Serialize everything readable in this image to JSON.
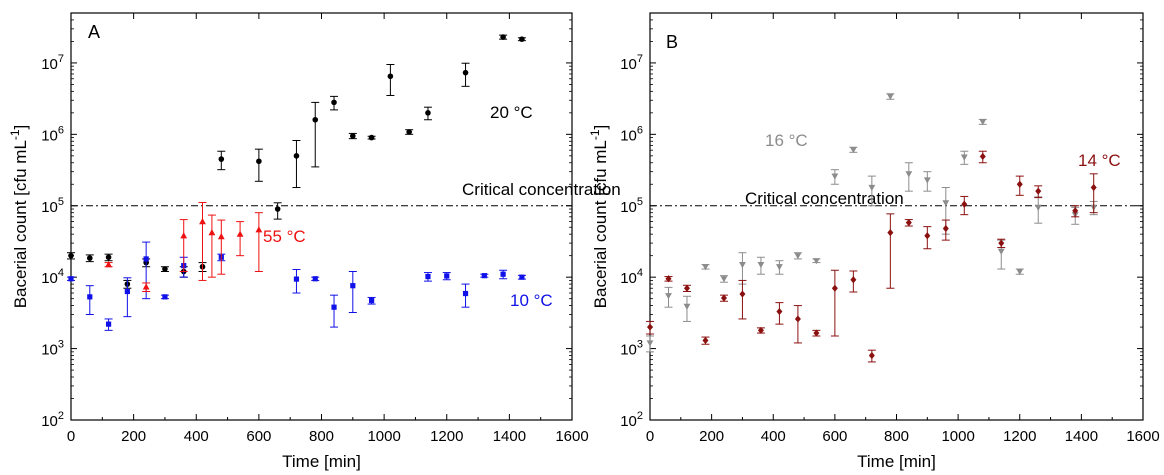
{
  "chart_data": [
    {
      "type": "scatter",
      "panel_label": "A",
      "xlabel": "Time [min]",
      "ylabel": "Bacerial count [cfu mL",
      "ylabel_sup": "-1",
      "ylabel_end": "]",
      "xlim": [
        0,
        1600
      ],
      "ylim": [
        100,
        50000000
      ],
      "yscale": "log",
      "x_ticks": [
        "0",
        "200",
        "400",
        "600",
        "800",
        "1000",
        "1200",
        "1400",
        "1600"
      ],
      "y_tick_labels": [
        {
          "base": "10",
          "exp": "2"
        },
        {
          "base": "10",
          "exp": "3"
        },
        {
          "base": "10",
          "exp": "4"
        },
        {
          "base": "10",
          "exp": "5"
        },
        {
          "base": "10",
          "exp": "6"
        },
        {
          "base": "10",
          "exp": "7"
        }
      ],
      "grid": false,
      "reference_line": {
        "y": 100000,
        "label": "Critical concentration"
      },
      "series": [
        {
          "name": "20 °C",
          "color": "#000000",
          "marker": "circle",
          "points": [
            {
              "x": 0,
              "y": 20000,
              "lo": 18000,
              "hi": 22000
            },
            {
              "x": 60,
              "y": 18500,
              "lo": 16500,
              "hi": 20500
            },
            {
              "x": 120,
              "y": 19000,
              "lo": 17000,
              "hi": 21000
            },
            {
              "x": 180,
              "y": 8000,
              "lo": 7000,
              "hi": 9000
            },
            {
              "x": 240,
              "y": 16000,
              "lo": 14000,
              "hi": 18000
            },
            {
              "x": 300,
              "y": 13000,
              "lo": 12000,
              "hi": 14000
            },
            {
              "x": 360,
              "y": 12000,
              "lo": 10000,
              "hi": 14000
            },
            {
              "x": 420,
              "y": 14000,
              "lo": 12000,
              "hi": 16000
            },
            {
              "x": 480,
              "y": 450000,
              "lo": 320000,
              "hi": 580000
            },
            {
              "x": 600,
              "y": 420000,
              "lo": 220000,
              "hi": 620000
            },
            {
              "x": 660,
              "y": 90000,
              "lo": 65000,
              "hi": 110000
            },
            {
              "x": 720,
              "y": 500000,
              "lo": 180000,
              "hi": 820000
            },
            {
              "x": 780,
              "y": 1600000,
              "lo": 350000,
              "hi": 2800000
            },
            {
              "x": 840,
              "y": 2800000,
              "lo": 2200000,
              "hi": 3400000
            },
            {
              "x": 900,
              "y": 950000,
              "lo": 870000,
              "hi": 1030000
            },
            {
              "x": 960,
              "y": 900000,
              "lo": 860000,
              "hi": 940000
            },
            {
              "x": 1020,
              "y": 6500000,
              "lo": 3500000,
              "hi": 9500000
            },
            {
              "x": 1080,
              "y": 1080000,
              "lo": 1000000,
              "hi": 1160000
            },
            {
              "x": 1140,
              "y": 2000000,
              "lo": 1600000,
              "hi": 2400000
            },
            {
              "x": 1260,
              "y": 7300000,
              "lo": 4700000,
              "hi": 9900000
            },
            {
              "x": 1380,
              "y": 23000000,
              "lo": 21500000,
              "hi": 24500000
            },
            {
              "x": 1440,
              "y": 21500000,
              "lo": 20500000,
              "hi": 22500000
            }
          ]
        },
        {
          "name": "10 °C",
          "color": "#1010e8",
          "marker": "square",
          "points": [
            {
              "x": 0,
              "y": 9500,
              "lo": 9000,
              "hi": 10000
            },
            {
              "x": 60,
              "y": 5300,
              "lo": 3000,
              "hi": 7600
            },
            {
              "x": 120,
              "y": 2200,
              "lo": 1800,
              "hi": 2600
            },
            {
              "x": 180,
              "y": 6300,
              "lo": 2800,
              "hi": 9800
            },
            {
              "x": 240,
              "y": 18000,
              "lo": 5000,
              "hi": 31000
            },
            {
              "x": 300,
              "y": 5300,
              "lo": 5000,
              "hi": 5600
            },
            {
              "x": 360,
              "y": 14500,
              "lo": 10000,
              "hi": 19000
            },
            {
              "x": 480,
              "y": 19000,
              "lo": 17000,
              "hi": 21000
            },
            {
              "x": 720,
              "y": 9400,
              "lo": 6000,
              "hi": 12800
            },
            {
              "x": 780,
              "y": 9500,
              "lo": 9000,
              "hi": 10000
            },
            {
              "x": 840,
              "y": 3800,
              "lo": 2000,
              "hi": 5600
            },
            {
              "x": 900,
              "y": 7600,
              "lo": 3200,
              "hi": 12000
            },
            {
              "x": 960,
              "y": 4700,
              "lo": 4200,
              "hi": 5200
            },
            {
              "x": 1140,
              "y": 10200,
              "lo": 8800,
              "hi": 11600
            },
            {
              "x": 1200,
              "y": 10400,
              "lo": 9200,
              "hi": 11600
            },
            {
              "x": 1260,
              "y": 5900,
              "lo": 3800,
              "hi": 8000
            },
            {
              "x": 1320,
              "y": 10500,
              "lo": 10000,
              "hi": 11000
            },
            {
              "x": 1380,
              "y": 11000,
              "lo": 9500,
              "hi": 12500
            },
            {
              "x": 1440,
              "y": 10000,
              "lo": 9400,
              "hi": 10600
            }
          ]
        },
        {
          "name": "55 °C",
          "color": "#ee1111",
          "marker": "triangle",
          "points": [
            {
              "x": 120,
              "y": 15000,
              "lo": 14000,
              "hi": 16000
            },
            {
              "x": 240,
              "y": 7300,
              "lo": 6300,
              "hi": 8300
            },
            {
              "x": 360,
              "y": 38000,
              "lo": 12000,
              "hi": 64000
            },
            {
              "x": 420,
              "y": 60000,
              "lo": 9000,
              "hi": 111000
            },
            {
              "x": 450,
              "y": 42000,
              "lo": 10000,
              "hi": 74000
            },
            {
              "x": 480,
              "y": 37000,
              "lo": 11000,
              "hi": 63000
            },
            {
              "x": 540,
              "y": 40000,
              "lo": 20000,
              "hi": 60000
            },
            {
              "x": 600,
              "y": 46000,
              "lo": 12000,
              "hi": 80000
            }
          ]
        }
      ],
      "annotations": [
        {
          "text": "20 °C",
          "color": "#000000"
        },
        {
          "text": "55 °C",
          "color": "#ee1111"
        },
        {
          "text": "10 °C",
          "color": "#1010e8"
        }
      ]
    },
    {
      "type": "scatter",
      "panel_label": "B",
      "xlabel": "Time [min]",
      "ylabel": "Bacerial count [cfu mL",
      "ylabel_sup": "-1",
      "ylabel_end": "]",
      "xlim": [
        0,
        1600
      ],
      "ylim": [
        100,
        50000000
      ],
      "yscale": "log",
      "x_ticks": [
        "0",
        "200",
        "400",
        "600",
        "800",
        "1000",
        "1200",
        "1400",
        "1600"
      ],
      "y_tick_labels": [
        {
          "base": "10",
          "exp": "2"
        },
        {
          "base": "10",
          "exp": "3"
        },
        {
          "base": "10",
          "exp": "4"
        },
        {
          "base": "10",
          "exp": "5"
        },
        {
          "base": "10",
          "exp": "6"
        },
        {
          "base": "10",
          "exp": "7"
        }
      ],
      "grid": false,
      "reference_line": {
        "y": 100000,
        "label": "Critical concentration"
      },
      "series": [
        {
          "name": "16 °C",
          "color": "#8c8c8c",
          "marker": "triangle-down",
          "points": [
            {
              "x": 0,
              "y": 1200,
              "lo": 900,
              "hi": 1500
            },
            {
              "x": 60,
              "y": 5500,
              "lo": 3800,
              "hi": 7200
            },
            {
              "x": 120,
              "y": 3900,
              "lo": 2400,
              "hi": 5400
            },
            {
              "x": 180,
              "y": 14000,
              "lo": 13000,
              "hi": 15000
            },
            {
              "x": 240,
              "y": 9500,
              "lo": 8500,
              "hi": 10500
            },
            {
              "x": 300,
              "y": 15000,
              "lo": 8000,
              "hi": 22000
            },
            {
              "x": 360,
              "y": 15000,
              "lo": 11000,
              "hi": 19000
            },
            {
              "x": 420,
              "y": 14000,
              "lo": 11000,
              "hi": 17000
            },
            {
              "x": 480,
              "y": 20000,
              "lo": 18000,
              "hi": 22000
            },
            {
              "x": 540,
              "y": 17000,
              "lo": 16000,
              "hi": 18000
            },
            {
              "x": 600,
              "y": 260000,
              "lo": 200000,
              "hi": 320000
            },
            {
              "x": 660,
              "y": 610000,
              "lo": 560000,
              "hi": 660000
            },
            {
              "x": 720,
              "y": 180000,
              "lo": 100000,
              "hi": 260000
            },
            {
              "x": 780,
              "y": 3400000,
              "lo": 3100000,
              "hi": 3700000
            },
            {
              "x": 840,
              "y": 280000,
              "lo": 160000,
              "hi": 400000
            },
            {
              "x": 900,
              "y": 230000,
              "lo": 160000,
              "hi": 300000
            },
            {
              "x": 960,
              "y": 110000,
              "lo": 40000,
              "hi": 180000
            },
            {
              "x": 1020,
              "y": 480000,
              "lo": 380000,
              "hi": 580000
            },
            {
              "x": 1080,
              "y": 1500000,
              "lo": 1380000,
              "hi": 1620000
            },
            {
              "x": 1140,
              "y": 23000,
              "lo": 13000,
              "hi": 33000
            },
            {
              "x": 1200,
              "y": 12000,
              "lo": 11000,
              "hi": 13000
            },
            {
              "x": 1260,
              "y": 95000,
              "lo": 57000,
              "hi": 133000
            },
            {
              "x": 1380,
              "y": 75000,
              "lo": 55000,
              "hi": 95000
            },
            {
              "x": 1440,
              "y": 95000,
              "lo": 75000,
              "hi": 115000
            }
          ]
        },
        {
          "name": "14 °C",
          "color": "#8b1010",
          "marker": "diamond",
          "points": [
            {
              "x": 0,
              "y": 2000,
              "lo": 1600,
              "hi": 2400
            },
            {
              "x": 60,
              "y": 9500,
              "lo": 8800,
              "hi": 10200
            },
            {
              "x": 120,
              "y": 7000,
              "lo": 6300,
              "hi": 7700
            },
            {
              "x": 180,
              "y": 1300,
              "lo": 1150,
              "hi": 1450
            },
            {
              "x": 240,
              "y": 5100,
              "lo": 4600,
              "hi": 5600
            },
            {
              "x": 300,
              "y": 5800,
              "lo": 2600,
              "hi": 9000
            },
            {
              "x": 360,
              "y": 1800,
              "lo": 1650,
              "hi": 1950
            },
            {
              "x": 420,
              "y": 3300,
              "lo": 2200,
              "hi": 4400
            },
            {
              "x": 480,
              "y": 2600,
              "lo": 1200,
              "hi": 4000
            },
            {
              "x": 540,
              "y": 1650,
              "lo": 1500,
              "hi": 1800
            },
            {
              "x": 600,
              "y": 7000,
              "lo": 1500,
              "hi": 12500
            },
            {
              "x": 660,
              "y": 9200,
              "lo": 6200,
              "hi": 12200
            },
            {
              "x": 720,
              "y": 800,
              "lo": 650,
              "hi": 950
            },
            {
              "x": 780,
              "y": 42000,
              "lo": 7000,
              "hi": 77000
            },
            {
              "x": 840,
              "y": 58000,
              "lo": 52000,
              "hi": 64000
            },
            {
              "x": 900,
              "y": 38000,
              "lo": 25000,
              "hi": 51000
            },
            {
              "x": 960,
              "y": 48000,
              "lo": 33000,
              "hi": 63000
            },
            {
              "x": 1020,
              "y": 105000,
              "lo": 75000,
              "hi": 135000
            },
            {
              "x": 1080,
              "y": 490000,
              "lo": 400000,
              "hi": 580000
            },
            {
              "x": 1140,
              "y": 30000,
              "lo": 26000,
              "hi": 34000
            },
            {
              "x": 1200,
              "y": 200000,
              "lo": 140000,
              "hi": 260000
            },
            {
              "x": 1260,
              "y": 160000,
              "lo": 130000,
              "hi": 190000
            },
            {
              "x": 1380,
              "y": 85000,
              "lo": 70000,
              "hi": 100000
            },
            {
              "x": 1440,
              "y": 180000,
              "lo": 80000,
              "hi": 280000
            }
          ]
        }
      ],
      "annotations": [
        {
          "text": "16 °C",
          "color": "#8c8c8c"
        },
        {
          "text": "14 °C",
          "color": "#8b1010"
        }
      ]
    }
  ]
}
